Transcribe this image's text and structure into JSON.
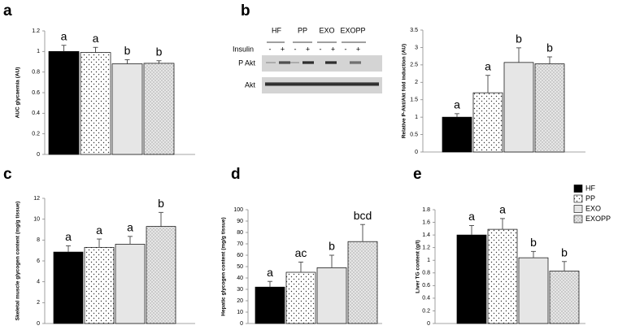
{
  "legend": [
    {
      "name": "HF",
      "color": "#000000",
      "pattern": "solid"
    },
    {
      "name": "PP",
      "color": "#ffffff",
      "pattern": "dots"
    },
    {
      "name": "EXO",
      "color": "#e6e6e6",
      "pattern": "solid"
    },
    {
      "name": "EXOPP",
      "color": "#e6e6e6",
      "pattern": "fine-dots"
    }
  ],
  "blot": {
    "panel": "b",
    "lanes": [
      "HF",
      "PP",
      "EXO",
      "EXOPP"
    ],
    "treatment": "Insulin",
    "signs": [
      "-",
      "+",
      "-",
      "+",
      "-",
      "+",
      "-",
      "+"
    ],
    "rows": [
      "P Akt",
      "Akt"
    ]
  },
  "chart_data": [
    {
      "type": "bar",
      "panel": "a",
      "y_label": "AUC glycaemia (AU)",
      "categories": [
        null,
        null,
        null,
        null
      ],
      "values": [
        1.0,
        0.99,
        0.88,
        0.885
      ],
      "errors": [
        0.06,
        0.05,
        0.04,
        0.025
      ],
      "annotations": [
        "a",
        "a",
        "b",
        "b"
      ],
      "ylim": [
        0,
        1.2
      ],
      "yticks": [
        0,
        0.2,
        0.4,
        0.6,
        0.8,
        1,
        1.2
      ]
    },
    {
      "type": "bar",
      "y_label": "Relative P-Akt/Akt fold induction (AU)",
      "categories": [
        null,
        null,
        null,
        null
      ],
      "values": [
        1.0,
        1.7,
        2.57,
        2.53
      ],
      "errors": [
        0.1,
        0.5,
        0.42,
        0.2
      ],
      "annotations": [
        "a",
        "a",
        "b",
        "b"
      ],
      "ylim": [
        0,
        3.5
      ],
      "yticks": [
        0,
        0.5,
        1,
        1.5,
        2,
        2.5,
        3,
        3.5
      ]
    },
    {
      "type": "bar",
      "panel": "c",
      "y_label": "Skeletal muscle glycogen content (mg/g tissue)",
      "categories": [
        null,
        null,
        null,
        null
      ],
      "values": [
        6.85,
        7.3,
        7.6,
        9.3
      ],
      "errors": [
        0.6,
        0.8,
        0.75,
        1.35
      ],
      "annotations": [
        "a",
        "a",
        "a",
        "b"
      ],
      "ylim": [
        0,
        12
      ],
      "yticks": [
        0,
        2,
        4,
        6,
        8,
        10,
        12
      ]
    },
    {
      "type": "bar",
      "panel": "d",
      "y_label": "Hepatic glycogen content (mg/g tissue)",
      "categories": [
        null,
        null,
        null,
        null
      ],
      "values": [
        32,
        45,
        49,
        72
      ],
      "errors": [
        5,
        9,
        11,
        15
      ],
      "annotations": [
        "a",
        "ac",
        "b",
        "bcd"
      ],
      "ylim": [
        0,
        100
      ],
      "yticks": [
        0,
        10,
        20,
        30,
        40,
        50,
        60,
        70,
        80,
        90,
        100
      ]
    },
    {
      "type": "bar",
      "panel": "e",
      "y_label": "Liver TG content (g/l)",
      "categories": [
        null,
        null,
        null,
        null
      ],
      "values": [
        1.4,
        1.49,
        1.04,
        0.83
      ],
      "errors": [
        0.15,
        0.17,
        0.1,
        0.15
      ],
      "annotations": [
        "a",
        "a",
        "b",
        "b"
      ],
      "ylim": [
        0,
        1.8
      ],
      "yticks": [
        0,
        0.2,
        0.4,
        0.6,
        0.8,
        1,
        1.2,
        1.4,
        1.6,
        1.8
      ]
    }
  ]
}
